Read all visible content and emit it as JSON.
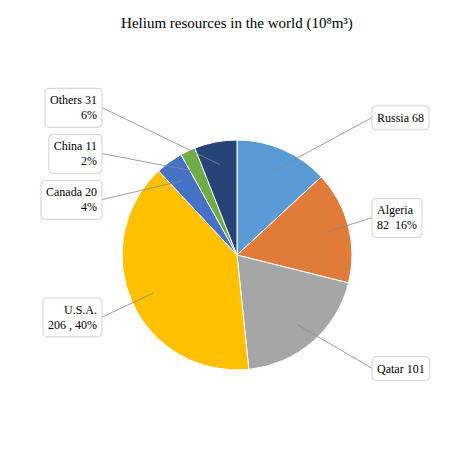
{
  "chart_data": {
    "type": "pie",
    "title": "Helium resources in the world (10⁸m³)",
    "values": [
      68,
      82,
      101,
      206,
      20,
      11,
      31
    ],
    "value_labels": [
      "Russia 68",
      "Algeria\n82  16%",
      "Qatar 101",
      "U.S.A.\n206 , 40%",
      "Canada 20\n4%",
      "China 11\n2%",
      "Others 31\n6%"
    ],
    "colors": [
      "#5b9bd5",
      "#e07b39",
      "#a6a6a6",
      "#ffc000",
      "#4472c4",
      "#70ad47",
      "#264478"
    ],
    "data_labels": true
  }
}
